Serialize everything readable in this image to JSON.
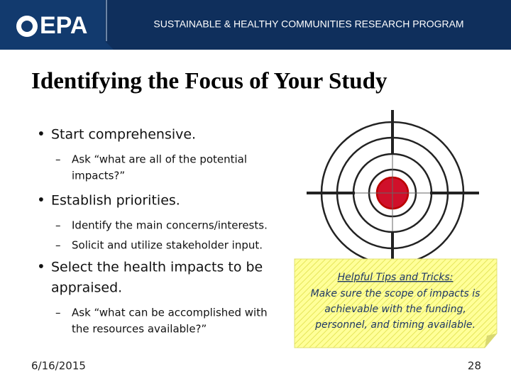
{
  "header": {
    "logo": "EPA",
    "program": "SUSTAINABLE & HEALTHY COMMUNITIES RESEARCH PROGRAM"
  },
  "title": "Identifying the Focus of Your Study",
  "bullets": [
    {
      "lines": [
        "Start comprehensive."
      ],
      "subs": [
        [
          "Ask “what are all of the potential",
          "impacts?”"
        ]
      ]
    },
    {
      "lines": [
        "Establish priorities."
      ],
      "subs": [
        [
          "Identify the main concerns/interests."
        ],
        [
          "Solicit and utilize stakeholder input."
        ]
      ]
    },
    {
      "lines": [
        "Select the health impacts to be",
        "appraised."
      ],
      "subs": [
        [
          "Ask “what can be accomplished with",
          "the resources available?”"
        ]
      ]
    }
  ],
  "note": {
    "heading": "Helpful Tips and Tricks:",
    "lines": [
      "Make sure the scope of impacts is",
      "achievable with the funding,",
      "personnel, and timing available."
    ]
  },
  "footer": {
    "date": "6/16/2015",
    "page": "28"
  }
}
